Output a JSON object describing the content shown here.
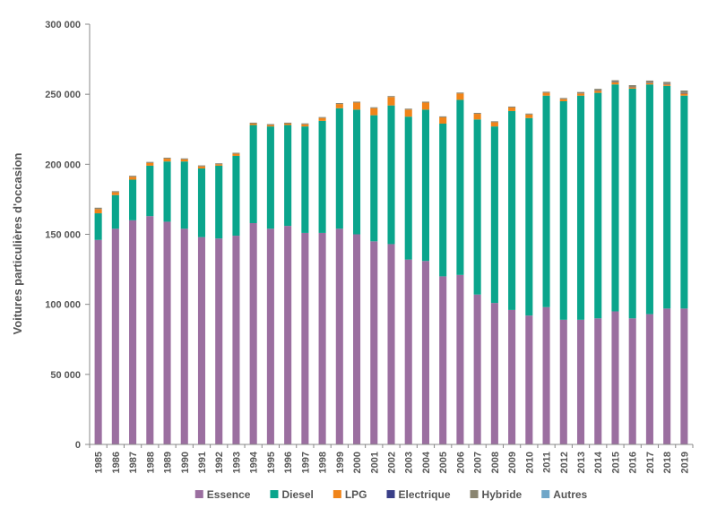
{
  "chart_data": {
    "type": "bar",
    "stacked": true,
    "title": "",
    "xlabel": "",
    "ylabel": "Voitures particulières d'occasion",
    "ylim": [
      0,
      300000
    ],
    "yticks": [
      0,
      50000,
      100000,
      150000,
      200000,
      250000,
      300000
    ],
    "ytick_labels": [
      "0",
      "50 000",
      "100 000",
      "150 000",
      "200 000",
      "250 000",
      "300 000"
    ],
    "grid": false,
    "legend_position": "bottom",
    "categories": [
      "1985",
      "1986",
      "1987",
      "1988",
      "1989",
      "1990",
      "1991",
      "1992",
      "1993",
      "1994",
      "1995",
      "1996",
      "1997",
      "1998",
      "1999",
      "2000",
      "2001",
      "2002",
      "2003",
      "2004",
      "2005",
      "2006",
      "2007",
      "2008",
      "2009",
      "2010",
      "2011",
      "2012",
      "2013",
      "2014",
      "2015",
      "2016",
      "2017",
      "2018",
      "2019"
    ],
    "series": [
      {
        "name": "Essence",
        "color": "#9b6fa0",
        "values": [
          146000,
          154000,
          160000,
          163000,
          159000,
          154000,
          148000,
          147000,
          149000,
          158000,
          154000,
          156000,
          151000,
          151000,
          154000,
          150000,
          145000,
          143000,
          132000,
          131000,
          120000,
          121000,
          107000,
          101000,
          96000,
          92000,
          98000,
          89000,
          89000,
          90000,
          95000,
          90000,
          93000,
          97000,
          97000
        ]
      },
      {
        "name": "Diesel",
        "color": "#0aa58c",
        "values": [
          19000,
          24000,
          29000,
          36000,
          43000,
          48000,
          49000,
          52000,
          57000,
          70000,
          73000,
          72000,
          76000,
          80000,
          86000,
          89000,
          90000,
          99000,
          102000,
          108000,
          109000,
          125000,
          125000,
          126000,
          142000,
          141000,
          151000,
          156000,
          160000,
          161000,
          162000,
          164000,
          164000,
          159000,
          152000
        ]
      },
      {
        "name": "LPG",
        "color": "#f08419",
        "values": [
          3000,
          2000,
          2000,
          2000,
          2000,
          1500,
          1500,
          1000,
          1500,
          1000,
          1000,
          1000,
          1500,
          2000,
          3000,
          5000,
          5000,
          6000,
          5000,
          5000,
          4500,
          4500,
          4000,
          3000,
          2500,
          2500,
          2000,
          1500,
          1500,
          1500,
          1500,
          1000,
          1000,
          1000,
          1500
        ]
      },
      {
        "name": "Electrique",
        "color": "#3a3f88",
        "values": [
          0,
          0,
          0,
          0,
          0,
          0,
          0,
          0,
          0,
          0,
          0,
          0,
          0,
          0,
          0,
          0,
          0,
          0,
          0,
          0,
          0,
          0,
          0,
          0,
          0,
          0,
          0,
          0,
          100,
          150,
          200,
          200,
          250,
          300,
          350
        ]
      },
      {
        "name": "Hybride",
        "color": "#8a8570",
        "values": [
          1000,
          800,
          800,
          700,
          700,
          700,
          700,
          700,
          700,
          700,
          700,
          700,
          700,
          700,
          700,
          700,
          700,
          700,
          700,
          700,
          700,
          700,
          700,
          700,
          700,
          700,
          800,
          800,
          1000,
          1200,
          1300,
          1300,
          1500,
          1500,
          1800
        ]
      },
      {
        "name": "Autres",
        "color": "#6fa6c8",
        "values": [
          0,
          0,
          0,
          0,
          0,
          0,
          0,
          0,
          0,
          0,
          0,
          0,
          0,
          0,
          0,
          0,
          0,
          0,
          0,
          0,
          0,
          0,
          0,
          0,
          0,
          0,
          0,
          0,
          0,
          0,
          0,
          0,
          0,
          0,
          0
        ]
      }
    ]
  }
}
